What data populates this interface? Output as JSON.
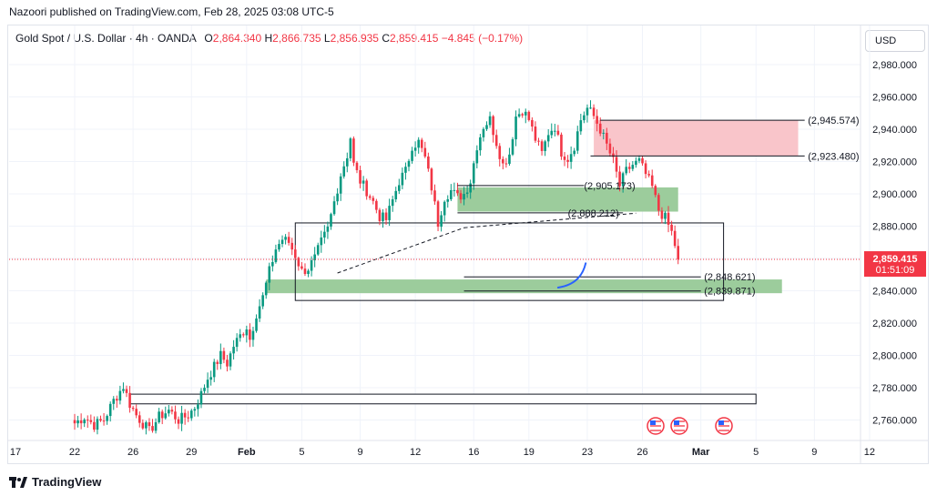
{
  "header": {
    "published_line": "Nazoori published on TradingView.com, Feb 28, 2025 03:08 UTC-5",
    "symbol": "Gold Spot / U.S. Dollar · 4h · OANDA",
    "o_label": "O",
    "o_value": "2,864.340",
    "h_label": "H",
    "h_value": "2,866.735",
    "l_label": "L",
    "l_value": "2,856.935",
    "c_label": "C",
    "c_value": "2,859.415",
    "change": "−4.845 (−0.17%)"
  },
  "currency_button": "USD",
  "footer": {
    "brand": "TradingView"
  },
  "colors": {
    "up": "#089981",
    "down": "#f23645",
    "demand": "#9ccc9c",
    "supply": "#f9c5ca",
    "curve": "#2962ff"
  },
  "chart_data": {
    "type": "candlestick",
    "symbol": "XAUUSD",
    "timeframe": "4h",
    "ylim": [
      2746,
      2994
    ],
    "y_ticks": [
      "2,980.000",
      "2,960.000",
      "2,940.000",
      "2,920.000",
      "2,900.000",
      "2,880.000",
      "2,860.000",
      "2,840.000",
      "2,820.000",
      "2,800.000",
      "2,780.000",
      "2,760.000"
    ],
    "y_tick_values": [
      2980,
      2960,
      2940,
      2920,
      2900,
      2880,
      2860,
      2840,
      2820,
      2800,
      2780,
      2760
    ],
    "x_ticks": [
      "17",
      "22",
      "26",
      "29",
      "Feb",
      "5",
      "9",
      "12",
      "16",
      "19",
      "23",
      "26",
      "Mar",
      "5",
      "9",
      "12"
    ],
    "x_tick_bars": [
      -40,
      0,
      18,
      36,
      53,
      70,
      88,
      105,
      123,
      140,
      158,
      175,
      193,
      210,
      228,
      245
    ],
    "last_price": "2,859.415",
    "countdown": "01:51:09",
    "levels": [
      {
        "label": "(2,945.574)",
        "value": 2945.574
      },
      {
        "label": "(2,923.480)",
        "value": 2923.48
      },
      {
        "label": "(2,905.173)",
        "value": 2905.173
      },
      {
        "label": "(2,888.212)",
        "value": 2888.212
      },
      {
        "label": "(2,848.621)",
        "value": 2848.621
      },
      {
        "label": "(2,839.871)",
        "value": 2839.871
      }
    ],
    "waypoints": [
      [
        0,
        2758
      ],
      [
        3,
        2762
      ],
      [
        6,
        2757
      ],
      [
        9,
        2760
      ],
      [
        12,
        2772
      ],
      [
        15,
        2781
      ],
      [
        17,
        2770
      ],
      [
        19,
        2763
      ],
      [
        21,
        2758
      ],
      [
        23,
        2753
      ],
      [
        26,
        2762
      ],
      [
        29,
        2766
      ],
      [
        32,
        2760
      ],
      [
        35,
        2763
      ],
      [
        37,
        2768
      ],
      [
        39,
        2776
      ],
      [
        41,
        2786
      ],
      [
        43,
        2793
      ],
      [
        45,
        2800
      ],
      [
        47,
        2795
      ],
      [
        49,
        2806
      ],
      [
        51,
        2812
      ],
      [
        53,
        2818
      ],
      [
        54,
        2810
      ],
      [
        56,
        2826
      ],
      [
        58,
        2836
      ],
      [
        60,
        2852
      ],
      [
        62,
        2866
      ],
      [
        64,
        2872
      ],
      [
        66,
        2870
      ],
      [
        68,
        2862
      ],
      [
        70,
        2852
      ],
      [
        72,
        2854
      ],
      [
        74,
        2860
      ],
      [
        76,
        2870
      ],
      [
        78,
        2878
      ],
      [
        80,
        2895
      ],
      [
        82,
        2912
      ],
      [
        84,
        2924
      ],
      [
        85,
        2935
      ],
      [
        86,
        2918
      ],
      [
        88,
        2908
      ],
      [
        90,
        2902
      ],
      [
        92,
        2895
      ],
      [
        94,
        2886
      ],
      [
        96,
        2884
      ],
      [
        98,
        2896
      ],
      [
        100,
        2908
      ],
      [
        102,
        2914
      ],
      [
        104,
        2930
      ],
      [
        106,
        2932
      ],
      [
        108,
        2922
      ],
      [
        110,
        2904
      ],
      [
        112,
        2882
      ],
      [
        114,
        2898
      ],
      [
        116,
        2902
      ],
      [
        118,
        2898
      ],
      [
        120,
        2900
      ],
      [
        122,
        2908
      ],
      [
        124,
        2930
      ],
      [
        126,
        2942
      ],
      [
        128,
        2946
      ],
      [
        130,
        2932
      ],
      [
        132,
        2918
      ],
      [
        134,
        2925
      ],
      [
        136,
        2948
      ],
      [
        138,
        2952
      ],
      [
        140,
        2946
      ],
      [
        142,
        2934
      ],
      [
        144,
        2925
      ],
      [
        146,
        2938
      ],
      [
        148,
        2942
      ],
      [
        150,
        2926
      ],
      [
        152,
        2922
      ],
      [
        154,
        2930
      ],
      [
        156,
        2946
      ],
      [
        158,
        2953
      ],
      [
        160,
        2948
      ],
      [
        162,
        2940
      ],
      [
        164,
        2930
      ],
      [
        166,
        2920
      ],
      [
        168,
        2905
      ],
      [
        170,
        2914
      ],
      [
        172,
        2918
      ],
      [
        174,
        2920
      ],
      [
        176,
        2912
      ],
      [
        178,
        2904
      ],
      [
        180,
        2890
      ],
      [
        182,
        2885
      ],
      [
        184,
        2876
      ],
      [
        186,
        2861
      ]
    ]
  }
}
